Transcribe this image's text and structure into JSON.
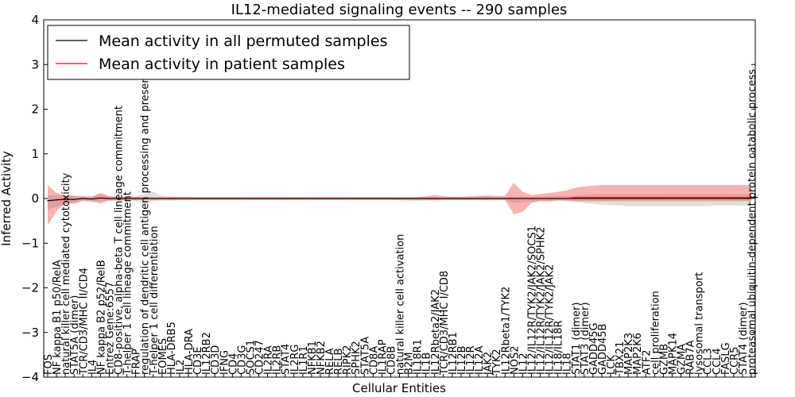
{
  "chart_data": {
    "type": "line",
    "title": "IL12-mediated signaling events -- 290 samples",
    "xlabel": "Cellular Entities",
    "ylabel": "Inferred Activity",
    "ylim": [
      -4,
      4
    ],
    "yticks": [
      -4,
      -3,
      -2,
      -1,
      0,
      1,
      2,
      3,
      4
    ],
    "grid": false,
    "legend_position": "top-left",
    "categories": [
      "FOS",
      "NF kappa B1 p50/RelA",
      "natural killer cell mediated cytotoxicity",
      "STAT5A (dimer)",
      "TCR/CD3/MHC II/CD4",
      "IL4",
      "NF kappa B2 p52/RelB",
      "Entrez Gene:6557",
      "CD8-positive, alpha-beta T cell lineage commitment",
      "T-helper 1 cell lineage commitment",
      "FRAP",
      "regulation of dendritic cell antigen processing and presentation",
      "T-helper 1 cell differentiation",
      "EOMES",
      "HLA-DRB5",
      "IL2",
      "HLA-DRA",
      "CD3E",
      "IL12RB2",
      "CD3D",
      "IFNG",
      "CD4",
      "CD3G",
      "SOCS1",
      "CD247",
      "IL2RA",
      "IL2RB",
      "STAT4",
      "IL2RG",
      "IL1R1",
      "NFKB1",
      "NFKB2",
      "RELA",
      "RELB",
      "RIPK2",
      "SPHK2",
      "STAT5A",
      "CD8A",
      "IL1RAP",
      "CD8B",
      "natural killer cell activation",
      "B2M",
      "IL18R1",
      "IL1B",
      "IL12Rbeta2/JAK2",
      "TCR/CD3/MHC I/CD8",
      "IL12RB1",
      "IL12B",
      "IL12R",
      "IL12A",
      "JAK2",
      "TYK2",
      "IL12Rbeta1/TYK2",
      "NOS2",
      "IL12",
      "IL12/IL12R/TYK2/JAK2/SOCS1",
      "IL12/IL12R/TYK2/JAK2/SPHK2",
      "IL12/IL12R/TYK2/JAK2",
      "IL18/IL18R",
      "IL18",
      "STAT1 (dimer)",
      "STAT3 (dimer)",
      "GADD45G",
      "GADD45B",
      "LCK",
      "TBX21",
      "MAP2K3",
      "MAP2K6",
      "ATF2",
      "cell proliferation",
      "GZMB",
      "MAPK14",
      "GZMA",
      "RAB7A",
      "lysosomal transport",
      "CCL3",
      "CCL4",
      "FASLG",
      "CCR5",
      "STAT4 (dimer)",
      "proteasomal ubiquitin-dependent protein catabolic process"
    ],
    "series": [
      {
        "name": "Mean activity in all permuted samples",
        "color": "#000000",
        "values": [
          -0.05,
          -0.03,
          -0.02,
          -0.02,
          0.0,
          -0.01,
          0.01,
          0.0,
          0.0,
          0.0,
          0.0,
          0.0,
          0.0,
          0.0,
          0.0,
          0.0,
          0.0,
          0.0,
          0.0,
          0.0,
          0.0,
          0.0,
          0.0,
          0.0,
          0.0,
          0.0,
          0.0,
          0.0,
          0.0,
          0.0,
          0.0,
          0.0,
          0.0,
          0.0,
          0.0,
          0.0,
          0.0,
          0.0,
          0.0,
          0.0,
          0.0,
          0.0,
          0.0,
          0.0,
          0.0,
          0.0,
          0.0,
          0.0,
          0.0,
          0.0,
          0.0,
          0.0,
          0.0,
          0.0,
          0.0,
          0.0,
          0.0,
          0.0,
          0.0,
          0.0,
          0.0,
          0.0,
          0.0,
          0.0,
          0.0,
          0.0,
          0.0,
          0.0,
          0.0,
          0.0,
          0.0,
          0.0,
          0.0,
          0.0,
          0.0,
          0.0,
          0.0,
          0.0,
          0.0,
          0.0,
          0.0
        ],
        "band_low": [
          -0.2,
          -0.15,
          -0.1,
          -0.1,
          -0.05,
          -0.08,
          -0.06,
          -0.05,
          -0.05,
          -0.04,
          -0.05,
          -0.12,
          -0.06,
          -0.05,
          -0.05,
          -0.04,
          -0.04,
          -0.03,
          -0.03,
          -0.03,
          -0.03,
          -0.03,
          -0.03,
          -0.03,
          -0.03,
          -0.03,
          -0.03,
          -0.03,
          -0.03,
          -0.03,
          -0.03,
          -0.03,
          -0.03,
          -0.03,
          -0.03,
          -0.03,
          -0.03,
          -0.03,
          -0.03,
          -0.03,
          -0.04,
          -0.05,
          -0.06,
          -0.05,
          -0.04,
          -0.04,
          -0.04,
          -0.04,
          -0.04,
          -0.04,
          -0.04,
          -0.04,
          -0.04,
          -0.1,
          -0.08,
          -0.07,
          -0.06,
          -0.06,
          -0.06,
          -0.06,
          -0.08,
          -0.1,
          -0.12,
          -0.14,
          -0.15,
          -0.16,
          -0.17,
          -0.17,
          -0.17,
          -0.17,
          -0.17,
          -0.17,
          -0.17,
          -0.17,
          -0.17,
          -0.17,
          -0.16,
          -0.16,
          -0.16,
          -0.16,
          -0.16
        ],
        "band_high": [
          0.12,
          0.1,
          0.08,
          0.08,
          0.05,
          0.06,
          0.08,
          0.05,
          0.05,
          0.04,
          0.05,
          0.1,
          0.15,
          0.06,
          0.05,
          0.04,
          0.04,
          0.03,
          0.03,
          0.03,
          0.03,
          0.03,
          0.03,
          0.03,
          0.03,
          0.03,
          0.03,
          0.03,
          0.03,
          0.03,
          0.03,
          0.03,
          0.03,
          0.03,
          0.03,
          0.03,
          0.03,
          0.03,
          0.03,
          0.03,
          0.03,
          0.03,
          0.03,
          0.03,
          0.03,
          0.03,
          0.03,
          0.03,
          0.03,
          0.03,
          0.03,
          0.03,
          0.03,
          0.04,
          0.04,
          0.04,
          0.04,
          0.05,
          0.06,
          0.06,
          0.07,
          0.08,
          0.09,
          0.1,
          0.1,
          0.1,
          0.1,
          0.1,
          0.1,
          0.1,
          0.1,
          0.1,
          0.1,
          0.1,
          0.1,
          0.1,
          0.1,
          0.1,
          0.1,
          0.1,
          0.1
        ]
      },
      {
        "name": "Mean activity in patient samples",
        "color": "#ff0000",
        "values": [
          -0.05,
          -0.03,
          -0.02,
          -0.02,
          0.0,
          -0.01,
          0.01,
          0.0,
          0.0,
          0.0,
          0.0,
          0.0,
          0.0,
          0.0,
          0.0,
          0.0,
          0.0,
          0.0,
          0.0,
          0.0,
          0.0,
          0.0,
          0.0,
          0.0,
          0.0,
          0.0,
          0.0,
          0.0,
          0.0,
          0.0,
          0.0,
          0.0,
          0.0,
          0.0,
          0.0,
          0.0,
          0.0,
          0.0,
          0.0,
          0.0,
          0.0,
          0.0,
          0.0,
          0.0,
          0.0,
          0.0,
          0.0,
          0.0,
          0.0,
          0.0,
          0.0,
          0.0,
          0.0,
          0.0,
          0.0,
          0.0,
          0.0,
          0.0,
          0.0,
          0.0,
          0.02,
          0.02,
          0.02,
          0.02,
          0.02,
          0.02,
          0.02,
          0.02,
          0.02,
          0.02,
          0.02,
          0.02,
          0.02,
          0.02,
          0.02,
          0.02,
          0.02,
          0.02,
          0.02,
          0.02,
          0.02
        ],
        "band_low": [
          -0.55,
          -0.25,
          -0.1,
          -0.08,
          -0.05,
          -0.05,
          -0.12,
          -0.05,
          -0.04,
          -0.04,
          -0.04,
          -0.03,
          -0.03,
          -0.03,
          -0.03,
          -0.03,
          -0.03,
          -0.03,
          -0.03,
          -0.03,
          -0.03,
          -0.03,
          -0.03,
          -0.03,
          -0.03,
          -0.03,
          -0.03,
          -0.03,
          -0.03,
          -0.03,
          -0.03,
          -0.03,
          -0.03,
          -0.03,
          -0.03,
          -0.03,
          -0.03,
          -0.03,
          -0.03,
          -0.03,
          -0.03,
          -0.03,
          -0.03,
          -0.03,
          -0.04,
          -0.03,
          -0.03,
          -0.03,
          -0.03,
          -0.03,
          -0.03,
          -0.03,
          -0.03,
          -0.35,
          -0.3,
          -0.1,
          -0.06,
          -0.06,
          -0.04,
          -0.05,
          -0.08,
          -0.08,
          -0.08,
          -0.08,
          -0.08,
          -0.08,
          -0.08,
          -0.08,
          -0.08,
          -0.08,
          -0.08,
          -0.08,
          -0.08,
          -0.08,
          -0.08,
          -0.08,
          -0.08,
          -0.08,
          -0.08,
          -0.08,
          -0.08
        ],
        "band_high": [
          0.35,
          0.15,
          0.1,
          0.08,
          0.05,
          0.05,
          0.12,
          0.05,
          0.04,
          0.04,
          0.04,
          0.03,
          0.03,
          0.03,
          0.03,
          0.03,
          0.03,
          0.03,
          0.03,
          0.03,
          0.03,
          0.03,
          0.03,
          0.03,
          0.03,
          0.03,
          0.03,
          0.03,
          0.03,
          0.03,
          0.03,
          0.03,
          0.03,
          0.03,
          0.03,
          0.03,
          0.03,
          0.03,
          0.03,
          0.03,
          0.03,
          0.03,
          0.03,
          0.05,
          0.08,
          0.05,
          0.04,
          0.04,
          0.05,
          0.06,
          0.07,
          0.06,
          0.06,
          0.35,
          0.15,
          0.08,
          0.1,
          0.12,
          0.15,
          0.18,
          0.22,
          0.25,
          0.27,
          0.28,
          0.28,
          0.28,
          0.28,
          0.28,
          0.28,
          0.28,
          0.28,
          0.28,
          0.28,
          0.28,
          0.28,
          0.28,
          0.28,
          0.28,
          0.28,
          0.28,
          0.28
        ]
      }
    ]
  }
}
